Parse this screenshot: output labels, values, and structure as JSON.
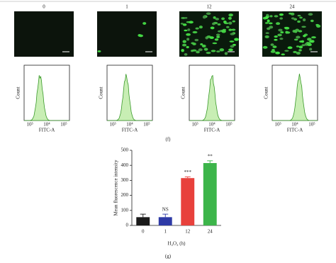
{
  "figure_f": {
    "label": "(f)",
    "panels": [
      {
        "title": "0"
      },
      {
        "title": "1"
      },
      {
        "title": "12"
      },
      {
        "title": "24"
      }
    ],
    "histogram": {
      "ylabel": "Count",
      "xlabel": "FITC-A",
      "xticks": [
        "10³",
        "10⁴",
        "10⁵"
      ]
    }
  },
  "chart_data": {
    "type": "bar",
    "label": "(g)",
    "ylabel": "Mean fluorescence intensity",
    "xlabel": "H₂O₂ (h)",
    "categories": [
      "0",
      "1",
      "12",
      "24"
    ],
    "values": [
      55,
      55,
      315,
      415
    ],
    "errors": [
      20,
      20,
      8,
      15
    ],
    "colors": [
      "#1a1a1a",
      "#2e3aa6",
      "#e8413c",
      "#3cb54a"
    ],
    "significance": [
      null,
      "NS",
      "***",
      "**"
    ],
    "ylim": [
      0,
      500
    ],
    "yticks": [
      0,
      100,
      200,
      300,
      400,
      500
    ]
  }
}
